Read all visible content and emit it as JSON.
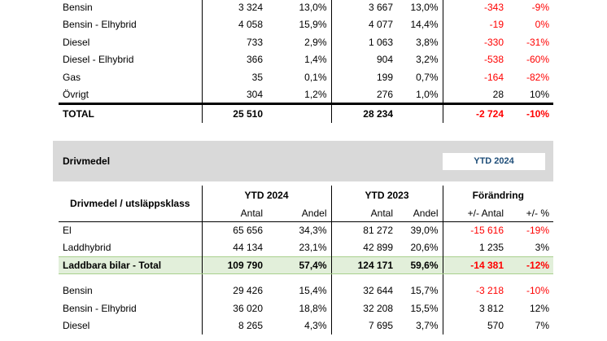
{
  "top_table": {
    "rows": [
      {
        "label": "Bensin",
        "c1": "3 324",
        "c2": "13,0%",
        "c3": "3 667",
        "c4": "13,0%",
        "c5": "-343",
        "c6": "-9%",
        "neg5": true,
        "neg6": true
      },
      {
        "label": "Bensin - Elhybrid",
        "c1": "4 058",
        "c2": "15,9%",
        "c3": "4 077",
        "c4": "14,4%",
        "c5": "-19",
        "c6": "0%",
        "neg5": true,
        "neg6": true
      },
      {
        "label": "Diesel",
        "c1": "733",
        "c2": "2,9%",
        "c3": "1 063",
        "c4": "3,8%",
        "c5": "-330",
        "c6": "-31%",
        "neg5": true,
        "neg6": true
      },
      {
        "label": "Diesel - Elhybrid",
        "c1": "366",
        "c2": "1,4%",
        "c3": "904",
        "c4": "3,2%",
        "c5": "-538",
        "c6": "-60%",
        "neg5": true,
        "neg6": true
      },
      {
        "label": "Gas",
        "c1": "35",
        "c2": "0,1%",
        "c3": "199",
        "c4": "0,7%",
        "c5": "-164",
        "c6": "-82%",
        "neg5": true,
        "neg6": true
      },
      {
        "label": "Övrigt",
        "c1": "304",
        "c2": "1,2%",
        "c3": "276",
        "c4": "1,0%",
        "c5": "28",
        "c6": "10%",
        "neg5": false,
        "neg6": false
      }
    ],
    "total": {
      "label": "TOTAL",
      "c1": "25 510",
      "c3": "28 234",
      "c5": "-2 724",
      "c6": "-10%"
    }
  },
  "section": {
    "title": "Drivmedel",
    "ytd_box": "YTD 2024"
  },
  "bottom_table": {
    "header_label": "Drivmedel / utsläppsklass",
    "group1": "YTD 2024",
    "group2": "YTD 2023",
    "group3": "Förändring",
    "sub_antal": "Antal",
    "sub_andel": "Andel",
    "sub_diff_antal": "+/- Antal",
    "sub_diff_pct": "+/- %",
    "rows_a": [
      {
        "label": "El",
        "c1": "65 656",
        "c2": "34,3%",
        "c3": "81 272",
        "c4": "39,0%",
        "c5": "-15 616",
        "c6": "-19%",
        "neg5": true,
        "neg6": true
      },
      {
        "label": "Laddhybrid",
        "c1": "44 134",
        "c2": "23,1%",
        "c3": "42 899",
        "c4": "20,6%",
        "c5": "1 235",
        "c6": "3%",
        "neg5": false,
        "neg6": false
      }
    ],
    "subtotal": {
      "label": "Laddbara bilar - Total",
      "c1": "109 790",
      "c2": "57,4%",
      "c3": "124 171",
      "c4": "59,6%",
      "c5": "-14 381",
      "c6": "-12%"
    },
    "rows_b": [
      {
        "label": "Bensin",
        "c1": "29 426",
        "c2": "15,4%",
        "c3": "32 644",
        "c4": "15,7%",
        "c5": "-3 218",
        "c6": "-10%",
        "neg5": true,
        "neg6": true
      },
      {
        "label": "Bensin - Elhybrid",
        "c1": "36 020",
        "c2": "18,8%",
        "c3": "32 208",
        "c4": "15,5%",
        "c5": "3 812",
        "c6": "12%",
        "neg5": false,
        "neg6": false
      },
      {
        "label": "Diesel",
        "c1": "8 265",
        "c2": "4,3%",
        "c3": "7 695",
        "c4": "3,7%",
        "c5": "570",
        "c6": "7%",
        "neg5": false,
        "neg6": false
      }
    ]
  }
}
